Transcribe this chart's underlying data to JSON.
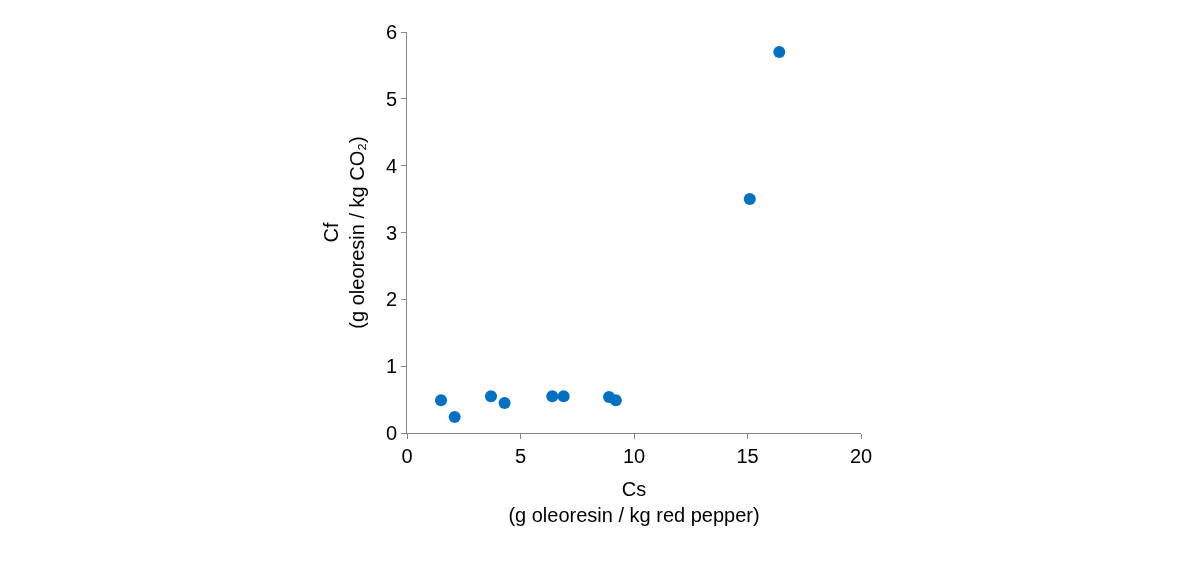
{
  "chart_data": {
    "type": "scatter",
    "xlabel": "Cs\n(g oleoresin / kg red pepper)",
    "ylabel": "Cf\n(g oleoresin / kg CO₂)",
    "x": [
      1.5,
      2.1,
      3.7,
      4.3,
      6.4,
      6.9,
      8.9,
      9.2,
      15.1,
      16.4
    ],
    "series": [
      {
        "color": "#0070c0",
        "values": [
          0.49,
          0.24,
          0.55,
          0.45,
          0.55,
          0.55,
          0.54,
          0.49,
          3.5,
          5.7
        ]
      }
    ],
    "xlim": [
      0,
      20
    ],
    "xticks": [
      0,
      5,
      10,
      15,
      20
    ],
    "ylim": [
      0,
      6
    ],
    "yticks": [
      0,
      1,
      2,
      3,
      4,
      5,
      6
    ],
    "marker": "circle"
  }
}
